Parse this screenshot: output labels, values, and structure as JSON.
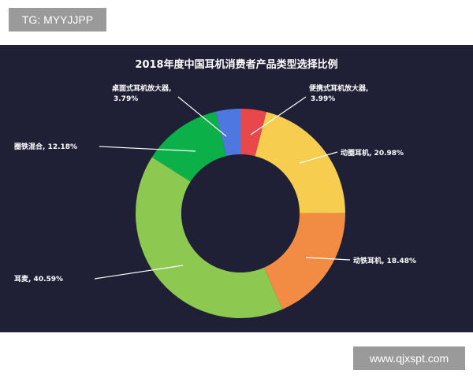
{
  "header": {
    "tag": "TG: MYYJJPP"
  },
  "footer": {
    "watermark": "www.qjxspt.com"
  },
  "chart_data": {
    "type": "pie",
    "donut": true,
    "title": "2018年度中国耳机消费者产品类型选择比例",
    "background": "#1f2036",
    "slices": [
      {
        "label": "便携式耳机放大器,",
        "value_text": "3.99%",
        "value": 3.99,
        "color": "#e8474b"
      },
      {
        "label": "动圈耳机, 20.98%",
        "value": 20.98,
        "color": "#f6cd4f"
      },
      {
        "label": "动铁耳机, 18.48%",
        "value": 18.48,
        "color": "#f28c45"
      },
      {
        "label": "耳麦, 40.59%",
        "value": 40.59,
        "color": "#8dc851"
      },
      {
        "label": "圈铁混合, 12.18%",
        "value": 12.18,
        "color": "#0bb049"
      },
      {
        "label": "桌面式耳机放大器,",
        "value_text": "3.79%",
        "value": 3.79,
        "color": "#4e78df"
      }
    ]
  }
}
